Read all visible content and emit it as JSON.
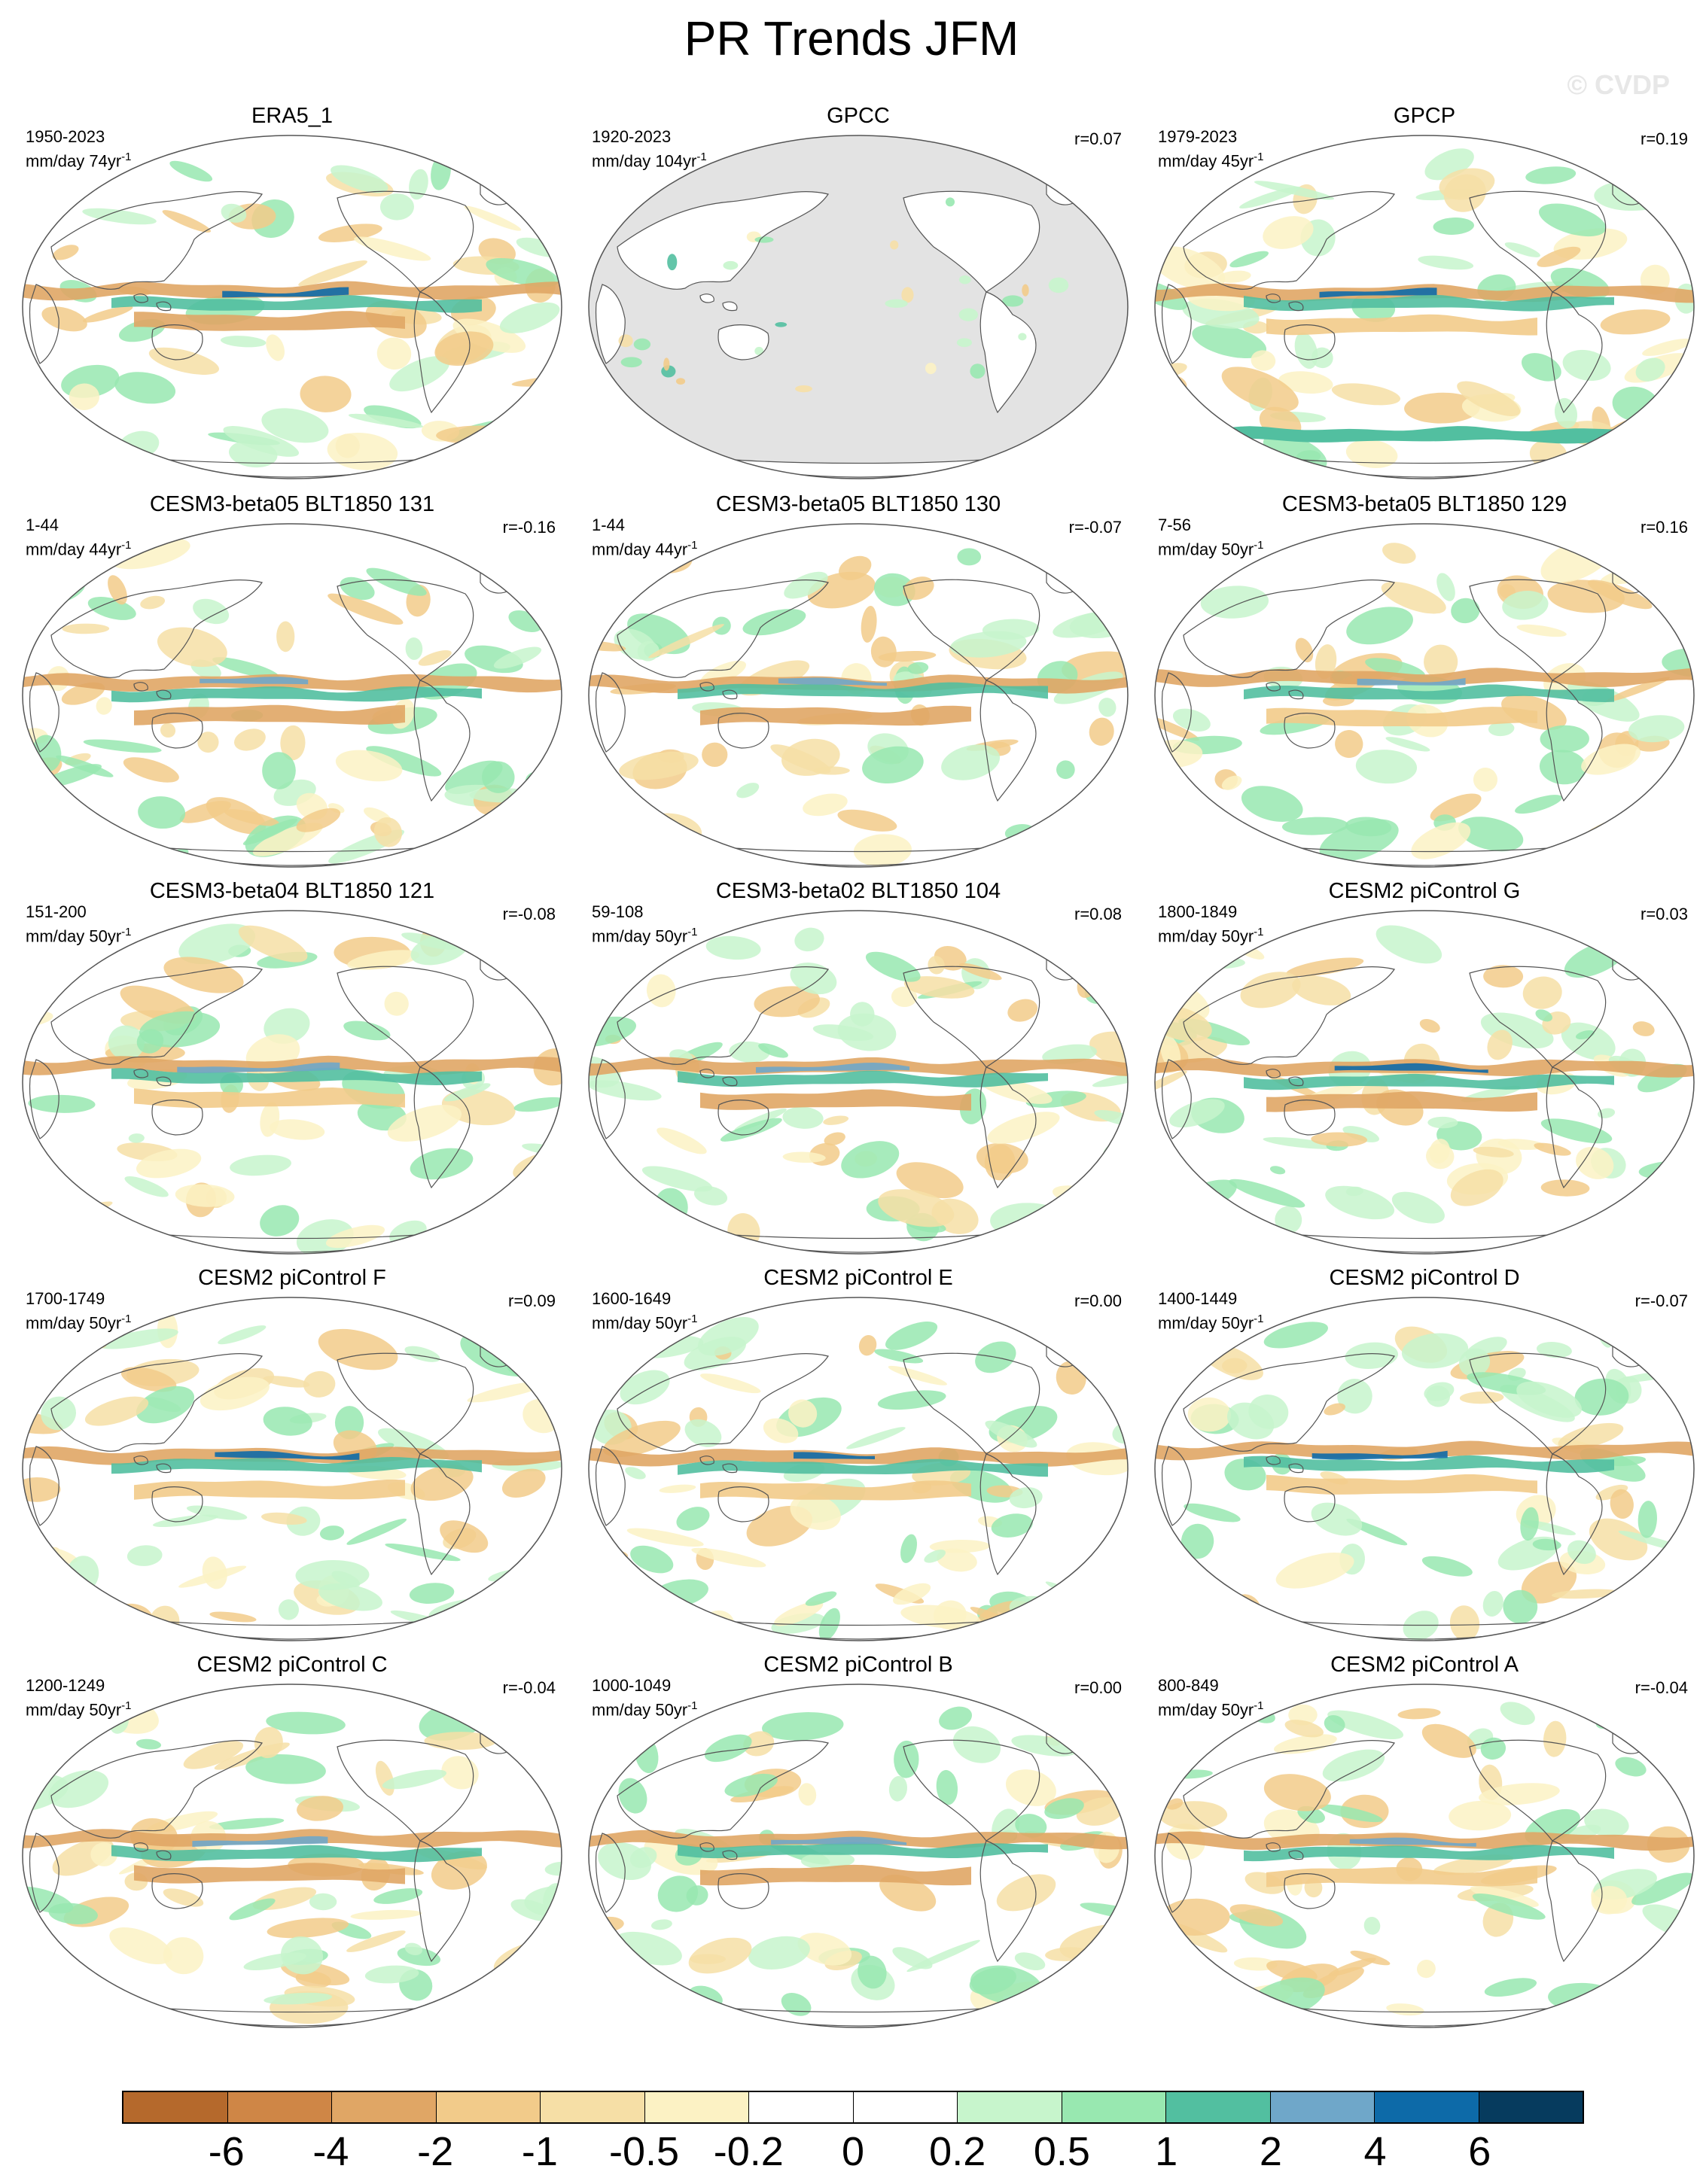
{
  "title": "PR Trends JFM",
  "watermark": "© CVDP",
  "colors": {
    "ocean_missing": "#e3e3e3",
    "coast": "#555555",
    "outline": "#555555"
  },
  "panels": [
    {
      "title": "ERA5_1",
      "period": "1950-2023",
      "units": "mm/day 74yr",
      "units_sup": "-1",
      "corr": "",
      "land_only": false
    },
    {
      "title": "GPCC",
      "period": "1920-2023",
      "units": "mm/day 104yr",
      "units_sup": "-1",
      "corr": "r=0.07",
      "land_only": true
    },
    {
      "title": "GPCP",
      "period": "1979-2023",
      "units": "mm/day 45yr",
      "units_sup": "-1",
      "corr": "r=0.19",
      "land_only": false
    },
    {
      "title": "CESM3-beta05 BLT1850 131",
      "period": "1-44",
      "units": "mm/day 44yr",
      "units_sup": "-1",
      "corr": "r=-0.16",
      "land_only": false
    },
    {
      "title": "CESM3-beta05 BLT1850 130",
      "period": "1-44",
      "units": "mm/day 44yr",
      "units_sup": "-1",
      "corr": "r=-0.07",
      "land_only": false
    },
    {
      "title": "CESM3-beta05 BLT1850 129",
      "period": "7-56",
      "units": "mm/day 50yr",
      "units_sup": "-1",
      "corr": "r=0.16",
      "land_only": false
    },
    {
      "title": "CESM3-beta04 BLT1850 121",
      "period": "151-200",
      "units": "mm/day 50yr",
      "units_sup": "-1",
      "corr": "r=-0.08",
      "land_only": false
    },
    {
      "title": "CESM3-beta02 BLT1850 104",
      "period": "59-108",
      "units": "mm/day 50yr",
      "units_sup": "-1",
      "corr": "r=0.08",
      "land_only": false
    },
    {
      "title": "CESM2 piControl G",
      "period": "1800-1849",
      "units": "mm/day 50yr",
      "units_sup": "-1",
      "corr": "r=0.03",
      "land_only": false
    },
    {
      "title": "CESM2 piControl F",
      "period": "1700-1749",
      "units": "mm/day 50yr",
      "units_sup": "-1",
      "corr": "r=0.09",
      "land_only": false
    },
    {
      "title": "CESM2 piControl E",
      "period": "1600-1649",
      "units": "mm/day 50yr",
      "units_sup": "-1",
      "corr": "r=0.00",
      "land_only": false
    },
    {
      "title": "CESM2 piControl D",
      "period": "1400-1449",
      "units": "mm/day 50yr",
      "units_sup": "-1",
      "corr": "r=-0.07",
      "land_only": false
    },
    {
      "title": "CESM2 piControl C",
      "period": "1200-1249",
      "units": "mm/day 50yr",
      "units_sup": "-1",
      "corr": "r=-0.04",
      "land_only": false
    },
    {
      "title": "CESM2 piControl B",
      "period": "1000-1049",
      "units": "mm/day 50yr",
      "units_sup": "-1",
      "corr": "r=0.00",
      "land_only": false
    },
    {
      "title": "CESM2 piControl A",
      "period": "800-849",
      "units": "mm/day 50yr",
      "units_sup": "-1",
      "corr": "r=-0.04",
      "land_only": false
    }
  ],
  "colorbar": {
    "colors": [
      "#b5692c",
      "#cf8646",
      "#e0a665",
      "#f2cb8a",
      "#f6dfa6",
      "#fcf2c4",
      "#ffffff",
      "#ffffff",
      "#c7f5cc",
      "#98e8b0",
      "#52bfa0",
      "#6fa7c9",
      "#0d6aa8",
      "#063b5e"
    ],
    "labels": [
      "-6",
      "-4",
      "-2",
      "-1",
      "-0.5",
      "-0.2",
      "0",
      "0.2",
      "0.5",
      "1",
      "2",
      "4",
      "6"
    ]
  }
}
